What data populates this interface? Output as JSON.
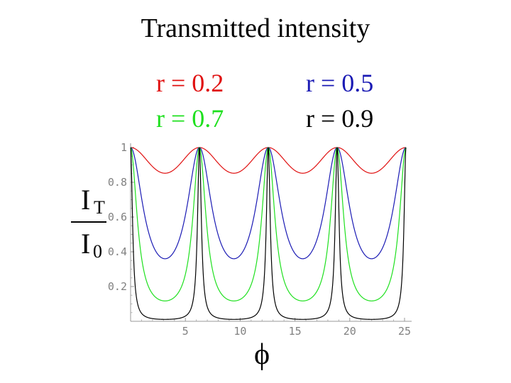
{
  "chart_data": {
    "type": "line",
    "title": "Transmitted intensity",
    "xlabel": "ϕ",
    "ylabel": {
      "numerator": "I",
      "numerator_sub": "T",
      "denominator": "I",
      "denominator_sub": "0"
    },
    "xlim": [
      0,
      25.13
    ],
    "ylim": [
      0,
      1
    ],
    "x_ticks": [
      "5",
      "10",
      "15",
      "20",
      "25"
    ],
    "x_tick_values": [
      5,
      10,
      15,
      20,
      25
    ],
    "y_ticks": [
      "0.2",
      "0.4",
      "0.6",
      "0.8",
      "1"
    ],
    "y_tick_values": [
      0.2,
      0.4,
      0.6,
      0.8,
      1
    ],
    "grid": false,
    "legend_placement": "top",
    "formula": "1 / (1 + (4 r^2 / (1 - r^2)^2) * sin^2(phi / 2))",
    "series": [
      {
        "name": "r = 0.2",
        "r": 0.2,
        "color": "#e01010"
      },
      {
        "name": "r = 0.5",
        "r": 0.5,
        "color": "#1a1ab4"
      },
      {
        "name": "r = 0.7",
        "r": 0.7,
        "color": "#1ee01e"
      },
      {
        "name": "r = 0.9",
        "r": 0.9,
        "color": "#000000"
      }
    ]
  }
}
